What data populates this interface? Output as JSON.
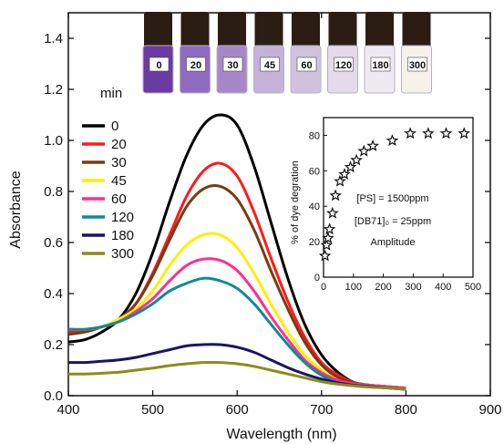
{
  "chart_data": [
    {
      "type": "line",
      "xlabel": "Wavelength (nm)",
      "ylabel": "Absorbance",
      "xlim": [
        400,
        900
      ],
      "ylim": [
        0.0,
        1.5
      ],
      "xticks": [
        400,
        500,
        600,
        700,
        800,
        900
      ],
      "yticks": [
        0.0,
        0.2,
        0.4,
        0.6,
        0.8,
        1.0,
        1.2,
        1.4
      ],
      "xtick_labels": [
        "400",
        "500",
        "600",
        "700",
        "800",
        "900"
      ],
      "ytick_labels": [
        "0.0",
        "0.2",
        "0.4",
        "0.6",
        "0.8",
        "1.0",
        "1.2",
        "1.4"
      ],
      "legend_title": "min",
      "legend_position": "left",
      "x": [
        400,
        420,
        440,
        460,
        480,
        500,
        520,
        540,
        560,
        580,
        600,
        620,
        640,
        660,
        680,
        700,
        720,
        740,
        760,
        780,
        800
      ],
      "series": [
        {
          "name": "0",
          "color": "#000000",
          "values": [
            0.21,
            0.22,
            0.25,
            0.3,
            0.4,
            0.56,
            0.76,
            0.94,
            1.06,
            1.1,
            1.06,
            0.9,
            0.68,
            0.46,
            0.28,
            0.16,
            0.09,
            0.05,
            0.04,
            0.035,
            0.03
          ]
        },
        {
          "name": "20",
          "color": "#ff1a1a",
          "values": [
            0.25,
            0.25,
            0.27,
            0.3,
            0.36,
            0.48,
            0.63,
            0.78,
            0.88,
            0.91,
            0.86,
            0.72,
            0.54,
            0.37,
            0.23,
            0.13,
            0.08,
            0.05,
            0.04,
            0.035,
            0.03
          ]
        },
        {
          "name": "30",
          "color": "#7a3b10",
          "values": [
            0.24,
            0.25,
            0.27,
            0.3,
            0.36,
            0.47,
            0.61,
            0.74,
            0.81,
            0.82,
            0.77,
            0.65,
            0.49,
            0.34,
            0.21,
            0.12,
            0.07,
            0.05,
            0.04,
            0.035,
            0.03
          ]
        },
        {
          "name": "45",
          "color": "#ffee00",
          "values": [
            0.26,
            0.26,
            0.27,
            0.3,
            0.34,
            0.41,
            0.51,
            0.59,
            0.63,
            0.63,
            0.58,
            0.48,
            0.36,
            0.25,
            0.16,
            0.1,
            0.06,
            0.045,
            0.04,
            0.035,
            0.03
          ]
        },
        {
          "name": "60",
          "color": "#ff2f8e",
          "values": [
            0.26,
            0.26,
            0.27,
            0.29,
            0.33,
            0.38,
            0.45,
            0.51,
            0.535,
            0.53,
            0.49,
            0.41,
            0.31,
            0.22,
            0.14,
            0.09,
            0.06,
            0.045,
            0.04,
            0.035,
            0.03
          ]
        },
        {
          "name": "120",
          "color": "#0f8a99",
          "values": [
            0.26,
            0.26,
            0.27,
            0.29,
            0.32,
            0.36,
            0.41,
            0.44,
            0.46,
            0.45,
            0.42,
            0.36,
            0.28,
            0.2,
            0.13,
            0.08,
            0.05,
            0.04,
            0.035,
            0.03,
            0.025
          ]
        },
        {
          "name": "180",
          "color": "#1b1464",
          "values": [
            0.13,
            0.13,
            0.135,
            0.14,
            0.15,
            0.165,
            0.18,
            0.195,
            0.2,
            0.2,
            0.19,
            0.17,
            0.14,
            0.11,
            0.085,
            0.065,
            0.05,
            0.04,
            0.035,
            0.03,
            0.025
          ]
        },
        {
          "name": "300",
          "color": "#8c8c1a",
          "values": [
            0.085,
            0.085,
            0.088,
            0.092,
            0.1,
            0.108,
            0.118,
            0.125,
            0.13,
            0.13,
            0.125,
            0.115,
            0.1,
            0.085,
            0.07,
            0.055,
            0.045,
            0.038,
            0.033,
            0.03,
            0.025
          ]
        }
      ]
    },
    {
      "type": "scatter",
      "ylabel": "% of dye degration",
      "xlim": [
        0,
        500
      ],
      "ylim": [
        0,
        90
      ],
      "xticks": [
        0,
        100,
        200,
        300,
        400,
        500
      ],
      "yticks": [
        0,
        20,
        40,
        60,
        80
      ],
      "xtick_labels": [
        "0",
        "100",
        "200",
        "300",
        "400",
        "500"
      ],
      "ytick_labels": [
        "0",
        "20",
        "40",
        "60",
        "80"
      ],
      "annotations": [
        "[PS] = 1500ppm",
        "[DB71]₀ = 25ppm",
        "Amplitude"
      ],
      "x": [
        5,
        10,
        15,
        20,
        30,
        40,
        55,
        70,
        90,
        110,
        135,
        165,
        230,
        290,
        350,
        410,
        470
      ],
      "values": [
        12,
        18,
        22,
        27,
        36,
        46,
        54,
        58,
        62,
        66,
        71,
        74,
        77,
        81,
        81,
        81,
        81
      ]
    }
  ],
  "vials": {
    "labels": [
      "0",
      "20",
      "30",
      "45",
      "60",
      "120",
      "180",
      "300"
    ],
    "colors": [
      "#6a3ca3",
      "#8f6cbf",
      "#a688c8",
      "#c4b2da",
      "#cfc2df",
      "#e3dbea",
      "#eeeaf1",
      "#f7f1ec"
    ]
  }
}
